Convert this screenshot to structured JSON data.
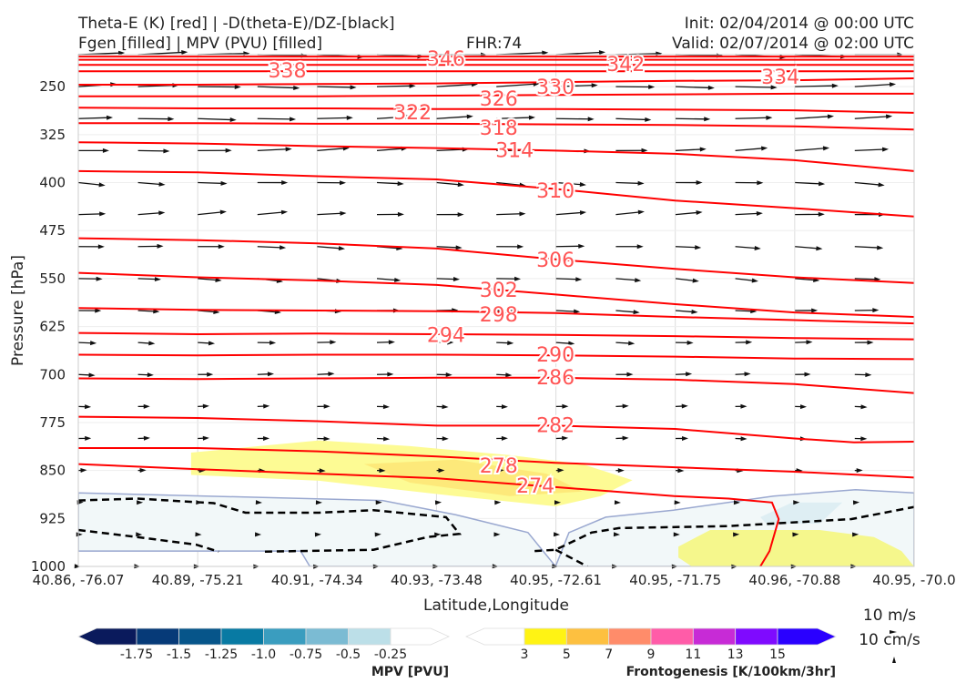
{
  "header": {
    "title_left_1": "Theta-E (K) [red] | -D(theta-E)/DZ-[black]",
    "title_left_2": "Fgen [filled] | MPV (PVU) [filled]",
    "fhr": "FHR:74",
    "init": "Init: 02/04/2014 @ 00:00 UTC",
    "valid": "Valid: 02/07/2014 @ 02:00 UTC"
  },
  "vector_key": {
    "wind": "10 m/s",
    "vertical": "10 cm/s"
  },
  "chart_data": {
    "type": "cross-section",
    "xlabel": "Latitude,Longitude",
    "ylabel": "Pressure [hPa]",
    "ylim": [
      1000,
      200
    ],
    "x_ticks": [
      "40.86, -76.07",
      "40.89, -75.21",
      "40.91, -74.34",
      "40.93, -73.48",
      "40.95, -72.61",
      "40.95, -71.75",
      "40.96, -70.88",
      "40.95, -70.0"
    ],
    "y_ticks": [
      "250",
      "325",
      "400",
      "475",
      "550",
      "625",
      "700",
      "775",
      "850",
      "925",
      "1000"
    ],
    "theta_e_contours": [
      {
        "value": "346",
        "points": [
          [
            0,
            203
          ],
          [
            0.5,
            203
          ],
          [
            1,
            203
          ]
        ],
        "label": [
          0.503,
          206
        ]
      },
      {
        "value": "342",
        "points": [
          [
            0,
            208
          ],
          [
            0.5,
            208
          ],
          [
            1,
            208
          ]
        ],
        "label": [
          0.503,
          214
        ]
      },
      {
        "value": "338",
        "points": [
          [
            0,
            216
          ],
          [
            0.5,
            216
          ],
          [
            1,
            216
          ]
        ],
        "label": [
          0.503,
          224
        ]
      },
      {
        "value": "334",
        "points": [
          [
            0,
            226
          ],
          [
            0.5,
            226
          ],
          [
            1,
            226
          ]
        ],
        "label": [
          0.503,
          234
        ]
      },
      {
        "value": "330",
        "points": [
          [
            0,
            247
          ],
          [
            0.143,
            247
          ],
          [
            0.286,
            246
          ],
          [
            0.429,
            245
          ],
          [
            0.571,
            243
          ],
          [
            0.714,
            241
          ],
          [
            0.857,
            240
          ],
          [
            1,
            237
          ]
        ],
        "label": [
          0.571,
          250
        ]
      },
      {
        "value": "326",
        "points": [
          [
            0,
            265
          ],
          [
            0.143,
            265
          ],
          [
            0.286,
            265
          ],
          [
            0.429,
            264
          ],
          [
            0.571,
            263
          ],
          [
            0.714,
            262
          ],
          [
            0.857,
            261
          ],
          [
            1,
            261
          ]
        ],
        "label": [
          0.503,
          268
        ]
      },
      {
        "value": "322",
        "points": [
          [
            0,
            283
          ],
          [
            0.143,
            284
          ],
          [
            0.286,
            284
          ],
          [
            0.429,
            285
          ],
          [
            0.571,
            285
          ],
          [
            0.714,
            286
          ],
          [
            0.857,
            287
          ],
          [
            1,
            291
          ]
        ],
        "label": [
          0.503,
          290
        ]
      },
      {
        "value": "318",
        "points": [
          [
            0,
            307
          ],
          [
            0.143,
            307
          ],
          [
            0.286,
            308
          ],
          [
            0.429,
            308
          ],
          [
            0.571,
            309
          ],
          [
            0.714,
            310
          ],
          [
            0.857,
            312
          ],
          [
            1,
            317
          ]
        ],
        "label": [
          0.503,
          314
        ]
      },
      {
        "value": "314",
        "points": [
          [
            0,
            337
          ],
          [
            0.143,
            339
          ],
          [
            0.286,
            343
          ],
          [
            0.429,
            346
          ],
          [
            0.571,
            350
          ],
          [
            0.714,
            355
          ],
          [
            0.857,
            365
          ],
          [
            1,
            382
          ]
        ],
        "label": [
          0.522,
          349
        ]
      },
      {
        "value": "310",
        "points": [
          [
            0,
            382
          ],
          [
            0.143,
            384
          ],
          [
            0.286,
            390
          ],
          [
            0.429,
            395
          ],
          [
            0.571,
            410
          ],
          [
            0.714,
            428
          ],
          [
            0.857,
            440
          ],
          [
            1,
            453
          ]
        ],
        "label": [
          0.571,
          412
        ]
      },
      {
        "value": "306",
        "points": [
          [
            0,
            487
          ],
          [
            0.143,
            490
          ],
          [
            0.286,
            495
          ],
          [
            0.429,
            503
          ],
          [
            0.571,
            520
          ],
          [
            0.714,
            535
          ],
          [
            0.857,
            548
          ],
          [
            1,
            557
          ]
        ],
        "label": [
          0.571,
          520
        ]
      },
      {
        "value": "302",
        "points": [
          [
            0,
            541
          ],
          [
            0.143,
            548
          ],
          [
            0.286,
            553
          ],
          [
            0.429,
            560
          ],
          [
            0.571,
            575
          ],
          [
            0.714,
            590
          ],
          [
            0.857,
            603
          ],
          [
            1,
            610
          ]
        ],
        "label": [
          0.503,
          567
        ]
      },
      {
        "value": "298",
        "points": [
          [
            0,
            596
          ],
          [
            0.143,
            599
          ],
          [
            0.286,
            600
          ],
          [
            0.429,
            601
          ],
          [
            0.571,
            604
          ],
          [
            0.714,
            610
          ],
          [
            0.857,
            615
          ],
          [
            1,
            620
          ]
        ],
        "label": [
          0.503,
          606
        ]
      },
      {
        "value": "294",
        "points": [
          [
            0,
            635
          ],
          [
            0.143,
            637
          ],
          [
            0.286,
            636
          ],
          [
            0.429,
            637
          ],
          [
            0.571,
            638
          ],
          [
            0.714,
            640
          ],
          [
            0.857,
            643
          ],
          [
            1,
            645
          ]
        ],
        "label": [
          0.503,
          638
        ]
      },
      {
        "value": "290",
        "points": [
          [
            0,
            669
          ],
          [
            0.143,
            670
          ],
          [
            0.286,
            669
          ],
          [
            0.429,
            669
          ],
          [
            0.571,
            670
          ],
          [
            0.714,
            672
          ],
          [
            0.857,
            675
          ],
          [
            1,
            676
          ]
        ],
        "label": [
          0.571,
          668
        ]
      },
      {
        "value": "286",
        "points": [
          [
            0,
            706
          ],
          [
            0.143,
            707
          ],
          [
            0.286,
            706
          ],
          [
            0.429,
            705
          ],
          [
            0.571,
            705
          ],
          [
            0.714,
            708
          ],
          [
            0.857,
            715
          ],
          [
            1,
            729
          ]
        ],
        "label": [
          0.571,
          704
        ]
      },
      {
        "value": "282",
        "points": [
          [
            0,
            766
          ],
          [
            0.143,
            768
          ],
          [
            0.286,
            773
          ],
          [
            0.429,
            780
          ],
          [
            0.571,
            780
          ],
          [
            0.714,
            785
          ],
          [
            0.857,
            800
          ],
          [
            0.928,
            806
          ],
          [
            1,
            805
          ]
        ],
        "label": [
          0.571,
          779
        ]
      },
      {
        "value": "278",
        "points": [
          [
            0,
            815
          ],
          [
            0.143,
            815
          ],
          [
            0.286,
            820
          ],
          [
            0.429,
            828
          ],
          [
            0.571,
            838
          ],
          [
            0.714,
            845
          ],
          [
            0.857,
            852
          ],
          [
            1,
            861
          ]
        ],
        "label": [
          0.503,
          842
        ]
      },
      {
        "value": "274",
        "points": [
          [
            0,
            840
          ],
          [
            0.143,
            848
          ],
          [
            0.285,
            855
          ],
          [
            0.428,
            862
          ],
          [
            0.571,
            876
          ],
          [
            0.713,
            890
          ],
          [
            0.778,
            894
          ],
          [
            0.83,
            900
          ],
          [
            0.838,
            926
          ],
          [
            0.827,
            976
          ],
          [
            0.816,
            1000
          ]
        ],
        "label": [
          0.547,
          873
        ]
      }
    ],
    "stability_dashed_contours": [
      [
        [
          0,
          897
        ],
        [
          0.07,
          894
        ],
        [
          0.162,
          901
        ],
        [
          0.2,
          916
        ],
        [
          0.288,
          916
        ],
        [
          0.353,
          912
        ],
        [
          0.44,
          923
        ],
        [
          0.456,
          949
        ],
        [
          0.418,
          954
        ],
        [
          0.353,
          974
        ],
        [
          0.222,
          977
        ]
      ],
      [
        [
          0,
          943
        ],
        [
          0.07,
          954
        ],
        [
          0.141,
          966
        ],
        [
          0.168,
          977
        ]
      ],
      [
        [
          0.546,
          976
        ],
        [
          0.571,
          974
        ],
        [
          0.614,
          947
        ],
        [
          0.647,
          940
        ],
        [
          0.778,
          937
        ],
        [
          0.925,
          926
        ],
        [
          1,
          907
        ]
      ],
      [
        [
          0.571,
          974
        ],
        [
          0.609,
          1000
        ]
      ]
    ],
    "mpv_filled": [
      {
        "level": "-0.25 to 0",
        "color": "#f2f8f9",
        "polygon": [
          [
            0,
            885
          ],
          [
            0.364,
            897
          ],
          [
            0.451,
            919
          ],
          [
            0.538,
            947
          ],
          [
            0.571,
            1000
          ],
          [
            0.587,
            947
          ],
          [
            0.631,
            923
          ],
          [
            0.712,
            912
          ],
          [
            0.832,
            890
          ],
          [
            0.93,
            880
          ],
          [
            1,
            885
          ],
          [
            1,
            1000
          ],
          [
            0.277,
            1000
          ],
          [
            0.266,
            976
          ],
          [
            0,
            976
          ]
        ]
      },
      {
        "level": "-0.5 to -0.25",
        "color": "#deeef3",
        "polygon": [
          [
            0.816,
            923
          ],
          [
            0.854,
            900
          ],
          [
            0.914,
            900
          ],
          [
            0.887,
            933
          ],
          [
            0.823,
            933
          ]
        ]
      }
    ],
    "fgen_filled": [
      {
        "level": "3 to 5",
        "color": "#fdfb94",
        "polygon": [
          [
            0.135,
            822
          ],
          [
            0.288,
            803
          ],
          [
            0.397,
            812
          ],
          [
            0.516,
            826
          ],
          [
            0.603,
            840
          ],
          [
            0.663,
            865
          ],
          [
            0.625,
            890
          ],
          [
            0.571,
            906
          ],
          [
            0.451,
            890
          ],
          [
            0.288,
            866
          ],
          [
            0.135,
            857
          ]
        ]
      },
      {
        "level": "3 to 5 (core)",
        "color": "#fde97a",
        "polygon": [
          [
            0.342,
            840
          ],
          [
            0.451,
            833
          ],
          [
            0.56,
            855
          ],
          [
            0.603,
            883
          ],
          [
            0.516,
            890
          ],
          [
            0.397,
            869
          ]
        ]
      },
      {
        "level": "3 to 5",
        "color": "#f5f78c",
        "polygon": [
          [
            0.718,
            969
          ],
          [
            0.756,
            943
          ],
          [
            0.887,
            943
          ],
          [
            0.952,
            954
          ],
          [
            0.985,
            976
          ],
          [
            1,
            1000
          ],
          [
            0.734,
            1000
          ],
          [
            0.718,
            986
          ]
        ]
      }
    ],
    "wind_rows": [
      {
        "p": 200,
        "speed": 60,
        "angle": 0
      },
      {
        "p": 250,
        "speed": 50,
        "angle": -1
      },
      {
        "p": 300,
        "speed": 45,
        "angle": -1
      },
      {
        "p": 350,
        "speed": 40,
        "angle": -2
      },
      {
        "p": 400,
        "speed": 35,
        "angle": 3
      },
      {
        "p": 450,
        "speed": 35,
        "angle": -3
      },
      {
        "p": 500,
        "speed": 33,
        "angle": 2
      },
      {
        "p": 550,
        "speed": 30,
        "angle": 4
      },
      {
        "p": 600,
        "speed": 28,
        "angle": 2
      },
      {
        "p": 650,
        "speed": 22,
        "angle": 1
      },
      {
        "p": 700,
        "speed": 20,
        "angle": 0
      },
      {
        "p": 750,
        "speed": 15,
        "angle": 0
      },
      {
        "p": 800,
        "speed": 15,
        "angle": 0
      },
      {
        "p": 850,
        "speed": 10,
        "angle": 0
      },
      {
        "p": 900,
        "speed": 6,
        "angle": 0
      },
      {
        "p": 950,
        "speed": 5,
        "angle": 0
      },
      {
        "p": 1000,
        "speed": 3,
        "angle": 0
      }
    ],
    "colorbars": [
      {
        "label": "MPV [PVU]",
        "colors": [
          "#0a1a5c",
          "#063a78",
          "#06558a",
          "#087aa3",
          "#3a9dbf",
          "#7bbbd3",
          "#bcdfe8",
          "#ffffff"
        ],
        "ticks": [
          "-1.75",
          "-1.5",
          "-1.25",
          "-1.0",
          "-0.75",
          "-0.5",
          "-0.25"
        ]
      },
      {
        "label": "Frontogenesis [K/100km/3hr]",
        "colors": [
          "#ffffff",
          "#fff314",
          "#fdc040",
          "#ff8c6a",
          "#ff5ca8",
          "#c72bd6",
          "#7f0aff",
          "#2a00ff"
        ],
        "ticks": [
          "3",
          "5",
          "7",
          "9",
          "11",
          "13",
          "15"
        ]
      }
    ]
  }
}
